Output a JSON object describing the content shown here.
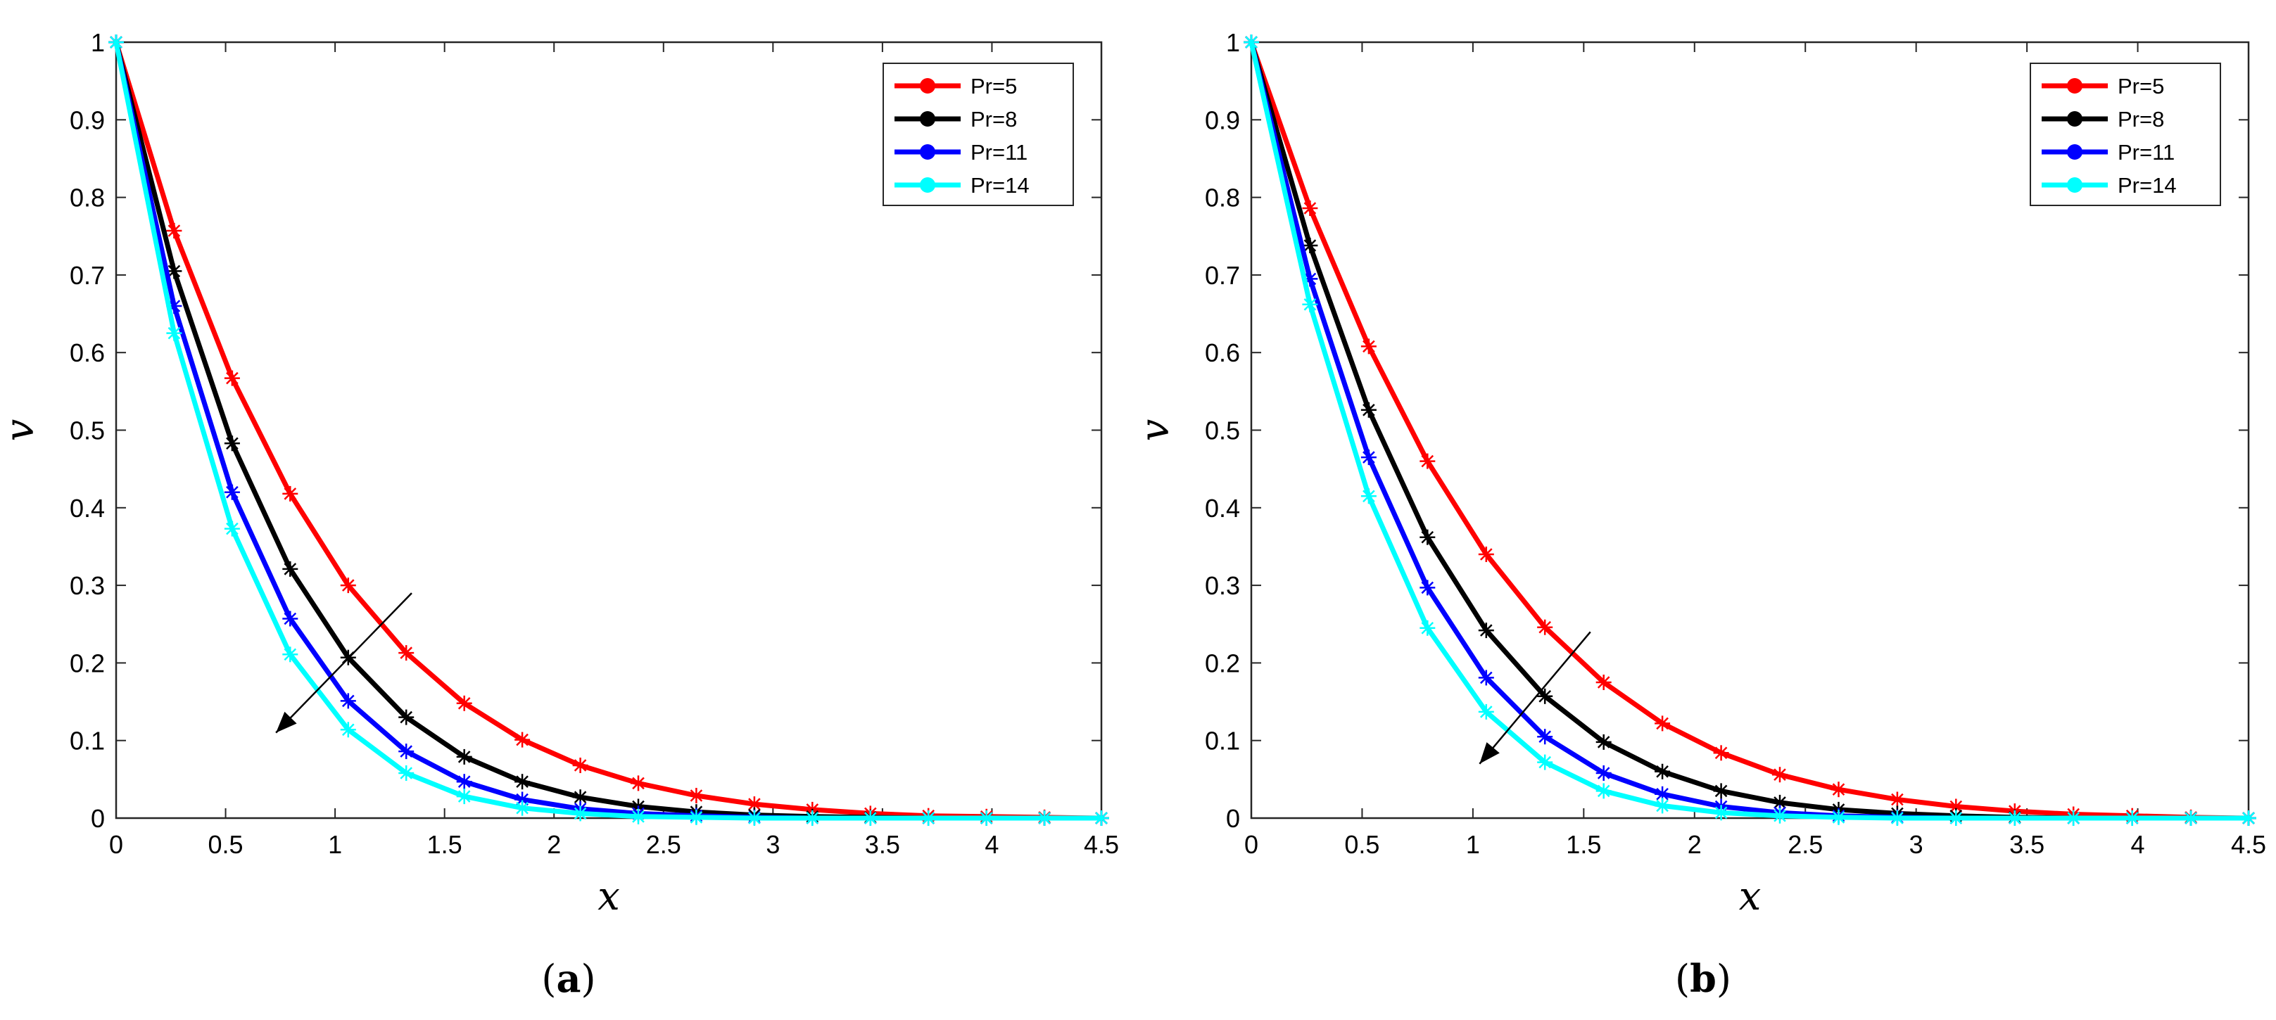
{
  "chart_data": [
    {
      "type": "line",
      "panel_label_open": "(",
      "panel_label_letter": "a",
      "panel_label_close": ")",
      "xlabel": "x",
      "ylabel": "v",
      "xlim": [
        0,
        4.5
      ],
      "ylim": [
        0,
        1
      ],
      "xticks": [
        0,
        0.5,
        1,
        1.5,
        2,
        2.5,
        3,
        3.5,
        4,
        4.5
      ],
      "xtick_labels": [
        "0",
        "0.5",
        "1",
        "1.5",
        "2",
        "2.5",
        "3",
        "3.5",
        "4",
        "4.5"
      ],
      "yticks": [
        0,
        0.1,
        0.2,
        0.3,
        0.4,
        0.5,
        0.6,
        0.7,
        0.8,
        0.9,
        1
      ],
      "ytick_labels": [
        "0",
        "0.1",
        "0.2",
        "0.3",
        "0.4",
        "0.5",
        "0.6",
        "0.7",
        "0.8",
        "0.9",
        "1"
      ],
      "legend_position": "top-right",
      "annotation": "arrow pointing toward decreasing v as Pr increases",
      "arrow": {
        "from": [
          1.35,
          0.29
        ],
        "to": [
          0.73,
          0.11
        ]
      },
      "series": [
        {
          "name": "Pr=5",
          "color": "#ff0000",
          "x": [
            0,
            0.265,
            0.53,
            0.795,
            1.06,
            1.325,
            1.59,
            1.855,
            2.12,
            2.385,
            2.65,
            2.915,
            3.18,
            3.445,
            3.71,
            3.975,
            4.24,
            4.5
          ],
          "y": [
            1.0,
            0.757,
            0.567,
            0.418,
            0.3,
            0.213,
            0.148,
            0.101,
            0.068,
            0.045,
            0.029,
            0.018,
            0.011,
            0.006,
            0.003,
            0.002,
            0.001,
            0.0
          ]
        },
        {
          "name": "Pr=8",
          "color": "#000000",
          "x": [
            0,
            0.265,
            0.53,
            0.795,
            1.06,
            1.325,
            1.59,
            1.855,
            2.12,
            2.385,
            2.65,
            2.915,
            3.18,
            3.445,
            3.71,
            3.975,
            4.24,
            4.5
          ],
          "y": [
            1.0,
            0.705,
            0.483,
            0.321,
            0.207,
            0.13,
            0.079,
            0.047,
            0.027,
            0.015,
            0.008,
            0.004,
            0.002,
            0.001,
            0.0,
            0.0,
            0.0,
            0.0
          ]
        },
        {
          "name": "Pr=11",
          "color": "#0000ff",
          "x": [
            0,
            0.265,
            0.53,
            0.795,
            1.06,
            1.325,
            1.59,
            1.855,
            2.12,
            2.385,
            2.65,
            2.915,
            3.18,
            3.445,
            3.71,
            3.975,
            4.24,
            4.5
          ],
          "y": [
            1.0,
            0.66,
            0.42,
            0.257,
            0.151,
            0.086,
            0.047,
            0.024,
            0.012,
            0.006,
            0.003,
            0.001,
            0.0,
            0.0,
            0.0,
            0.0,
            0.0,
            0.0
          ]
        },
        {
          "name": "Pr=14",
          "color": "#00ffff",
          "x": [
            0,
            0.265,
            0.53,
            0.795,
            1.06,
            1.325,
            1.59,
            1.855,
            2.12,
            2.385,
            2.65,
            2.915,
            3.18,
            3.445,
            3.71,
            3.975,
            4.24,
            4.5
          ],
          "y": [
            1.0,
            0.625,
            0.373,
            0.211,
            0.114,
            0.058,
            0.028,
            0.013,
            0.006,
            0.002,
            0.001,
            0.0,
            0.0,
            0.0,
            0.0,
            0.0,
            0.0,
            0.0
          ]
        }
      ]
    },
    {
      "type": "line",
      "panel_label_open": "(",
      "panel_label_letter": "b",
      "panel_label_close": ")",
      "xlabel": "x",
      "ylabel": "v",
      "xlim": [
        0,
        4.5
      ],
      "ylim": [
        0,
        1
      ],
      "xticks": [
        0,
        0.5,
        1,
        1.5,
        2,
        2.5,
        3,
        3.5,
        4,
        4.5
      ],
      "xtick_labels": [
        "0",
        "0.5",
        "1",
        "1.5",
        "2",
        "2.5",
        "3",
        "3.5",
        "4",
        "4.5"
      ],
      "yticks": [
        0,
        0.1,
        0.2,
        0.3,
        0.4,
        0.5,
        0.6,
        0.7,
        0.8,
        0.9,
        1
      ],
      "ytick_labels": [
        "0",
        "0.1",
        "0.2",
        "0.3",
        "0.4",
        "0.5",
        "0.6",
        "0.7",
        "0.8",
        "0.9",
        "1"
      ],
      "legend_position": "top-right",
      "annotation": "arrow pointing toward decreasing v as Pr increases",
      "arrow": {
        "from": [
          1.53,
          0.24
        ],
        "to": [
          1.03,
          0.07
        ]
      },
      "series": [
        {
          "name": "Pr=5",
          "color": "#ff0000",
          "x": [
            0,
            0.265,
            0.53,
            0.795,
            1.06,
            1.325,
            1.59,
            1.855,
            2.12,
            2.385,
            2.65,
            2.915,
            3.18,
            3.445,
            3.71,
            3.975,
            4.24,
            4.5
          ],
          "y": [
            1.0,
            0.786,
            0.608,
            0.46,
            0.34,
            0.246,
            0.175,
            0.122,
            0.084,
            0.056,
            0.037,
            0.024,
            0.015,
            0.009,
            0.005,
            0.003,
            0.001,
            0.0
          ]
        },
        {
          "name": "Pr=8",
          "color": "#000000",
          "x": [
            0,
            0.265,
            0.53,
            0.795,
            1.06,
            1.325,
            1.59,
            1.855,
            2.12,
            2.385,
            2.65,
            2.915,
            3.18,
            3.445,
            3.71,
            3.975,
            4.24,
            4.5
          ],
          "y": [
            1.0,
            0.738,
            0.526,
            0.362,
            0.242,
            0.157,
            0.098,
            0.06,
            0.035,
            0.02,
            0.011,
            0.006,
            0.003,
            0.001,
            0.0,
            0.0,
            0.0,
            0.0
          ]
        },
        {
          "name": "Pr=11",
          "color": "#0000ff",
          "x": [
            0,
            0.265,
            0.53,
            0.795,
            1.06,
            1.325,
            1.59,
            1.855,
            2.12,
            2.385,
            2.65,
            2.915,
            3.18,
            3.445,
            3.71,
            3.975,
            4.24,
            4.5
          ],
          "y": [
            1.0,
            0.695,
            0.465,
            0.297,
            0.181,
            0.105,
            0.058,
            0.031,
            0.015,
            0.007,
            0.003,
            0.001,
            0.0,
            0.0,
            0.0,
            0.0,
            0.0,
            0.0
          ]
        },
        {
          "name": "Pr=14",
          "color": "#00ffff",
          "x": [
            0,
            0.265,
            0.53,
            0.795,
            1.06,
            1.325,
            1.59,
            1.855,
            2.12,
            2.385,
            2.65,
            2.915,
            3.18,
            3.445,
            3.71,
            3.975,
            4.24,
            4.5
          ],
          "y": [
            1.0,
            0.662,
            0.415,
            0.245,
            0.137,
            0.072,
            0.035,
            0.016,
            0.007,
            0.003,
            0.001,
            0.0,
            0.0,
            0.0,
            0.0,
            0.0,
            0.0,
            0.0
          ]
        }
      ]
    }
  ]
}
